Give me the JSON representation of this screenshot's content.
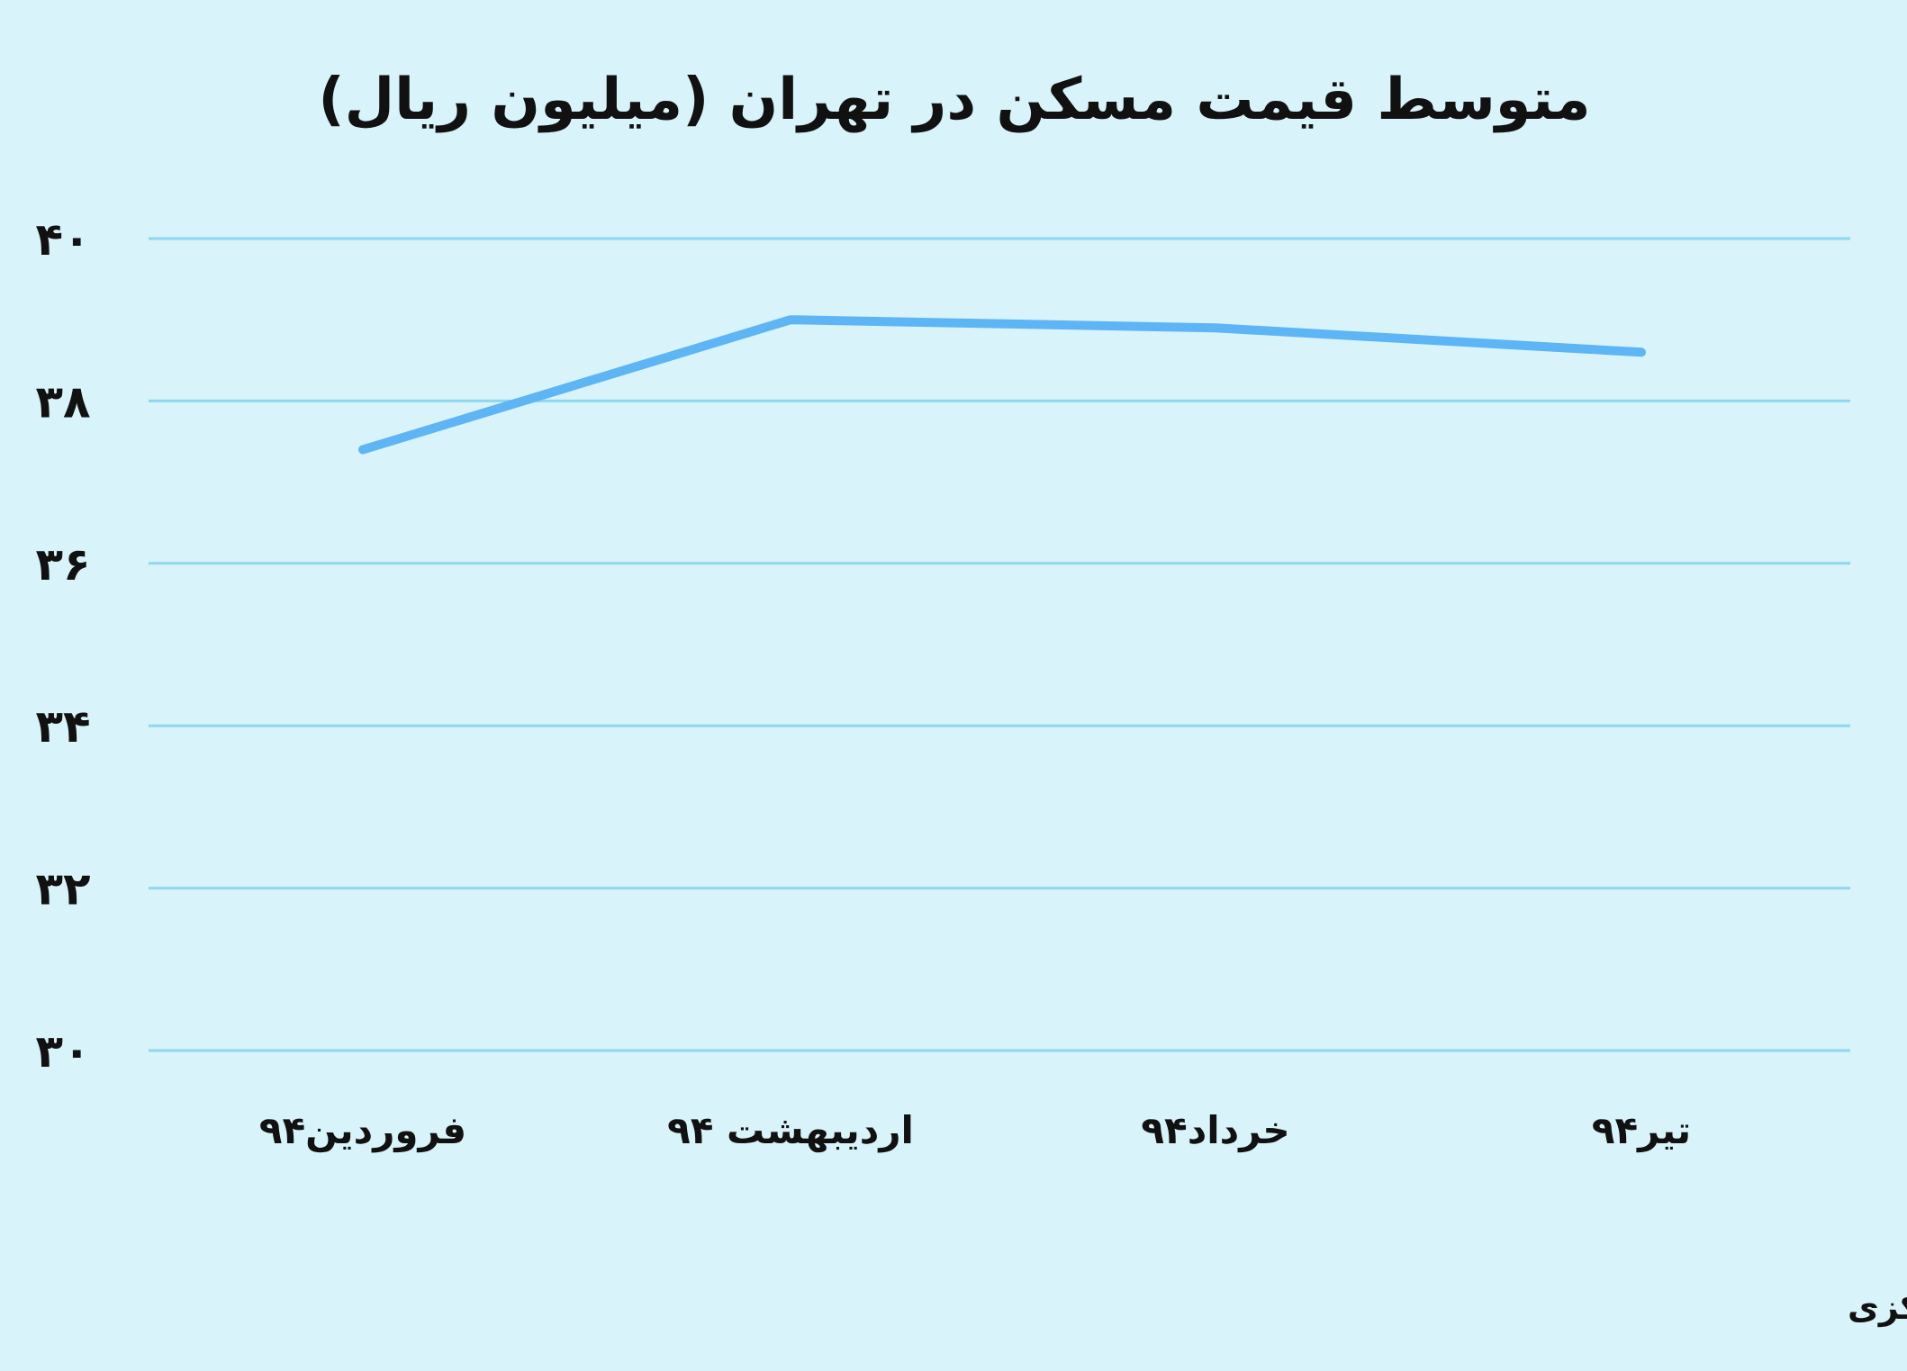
{
  "chart_data": {
    "type": "line",
    "title": "متوسط قیمت مسکن در تهران (میلیون ریال)",
    "categories": [
      "فروردین۹۴",
      "اردیبهشت ۹۴",
      "خرداد۹۴",
      "تیر۹۴"
    ],
    "y_tick_labels": [
      "۳۰",
      "۳۲",
      "۳۴",
      "۳۶",
      "۳۸",
      "۴۰"
    ],
    "ylim": [
      30,
      40
    ],
    "y_ticks": [
      30,
      32,
      34,
      36,
      38,
      40
    ],
    "series": [
      {
        "values": [
          37.4,
          39.0,
          38.9,
          38.6
        ]
      }
    ],
    "grid": true,
    "line_color": "#5db5f5",
    "grid_color": "#8fd6f0",
    "background_color": "#d8f3f9"
  },
  "source_note": "منبع: بانک مرکزی"
}
